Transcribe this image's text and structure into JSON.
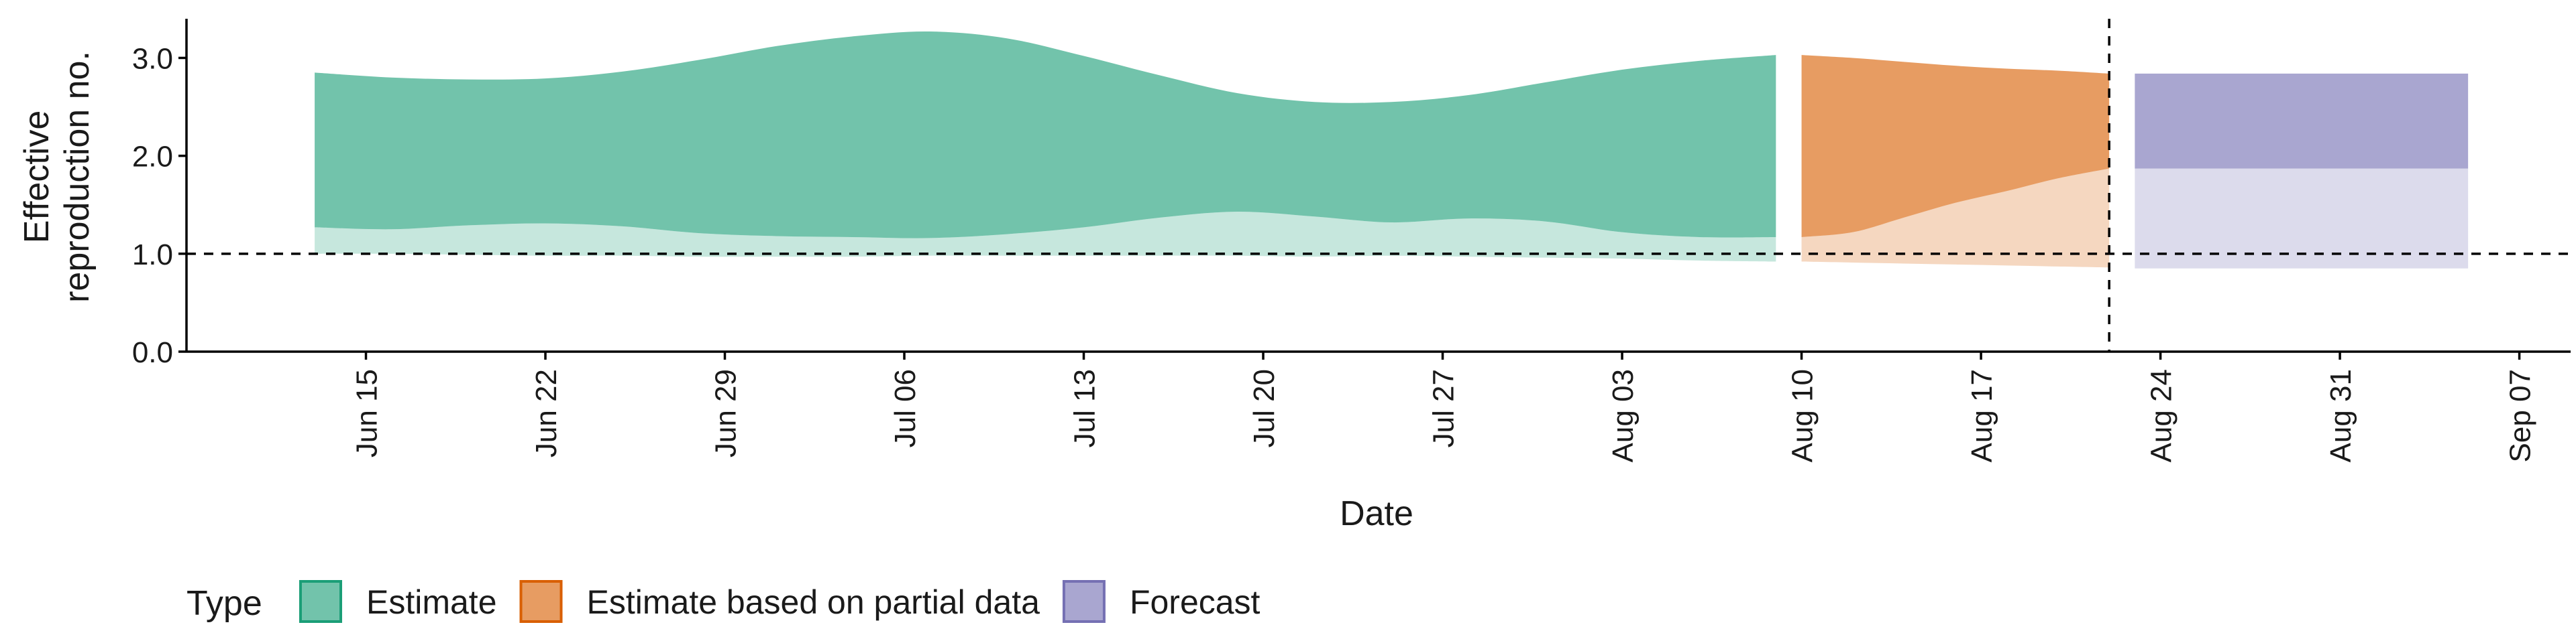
{
  "chart_data": {
    "type": "area",
    "xlabel": "Date",
    "ylabel_lines": [
      "Effective",
      "reproduction no."
    ],
    "ylim": [
      0,
      3.4
    ],
    "yticks": [
      {
        "value": 0,
        "label": "0.0"
      },
      {
        "value": 1,
        "label": "1.0"
      },
      {
        "value": 2,
        "label": "2.0"
      },
      {
        "value": 3,
        "label": "3.0"
      }
    ],
    "xlim": [
      "2020-06-08",
      "2020-09-09"
    ],
    "xticks": [
      {
        "date": "2020-06-15",
        "label": "Jun 15"
      },
      {
        "date": "2020-06-22",
        "label": "Jun 22"
      },
      {
        "date": "2020-06-29",
        "label": "Jun 29"
      },
      {
        "date": "2020-07-06",
        "label": "Jul 06"
      },
      {
        "date": "2020-07-13",
        "label": "Jul 13"
      },
      {
        "date": "2020-07-20",
        "label": "Jul 20"
      },
      {
        "date": "2020-07-27",
        "label": "Jul 27"
      },
      {
        "date": "2020-08-03",
        "label": "Aug 03"
      },
      {
        "date": "2020-08-10",
        "label": "Aug 10"
      },
      {
        "date": "2020-08-17",
        "label": "Aug 17"
      },
      {
        "date": "2020-08-24",
        "label": "Aug 24"
      },
      {
        "date": "2020-08-31",
        "label": "Aug 31"
      },
      {
        "date": "2020-09-07",
        "label": "Sep 07"
      }
    ],
    "reference_line": {
      "y": 1.0,
      "style": "dashed"
    },
    "vertical_line": {
      "date": "2020-08-22",
      "style": "dashed"
    },
    "legend": {
      "title": "Type",
      "position": "bottom",
      "items": [
        {
          "label": "Estimate",
          "fill": "#1b9e77",
          "key": "estimate"
        },
        {
          "label": "Estimate based on partial data",
          "fill": "#d95f02",
          "key": "partial"
        },
        {
          "label": "Forecast",
          "fill": "#7570b3",
          "key": "forecast"
        }
      ]
    },
    "series": [
      {
        "key": "estimate",
        "color": "#1b9e77",
        "x": [
          "2020-06-13",
          "2020-06-16",
          "2020-06-19",
          "2020-06-22",
          "2020-06-25",
          "2020-06-28",
          "2020-07-01",
          "2020-07-04",
          "2020-07-07",
          "2020-07-10",
          "2020-07-13",
          "2020-07-16",
          "2020-07-19",
          "2020-07-22",
          "2020-07-25",
          "2020-07-28",
          "2020-07-31",
          "2020-08-03",
          "2020-08-06",
          "2020-08-09"
        ],
        "upper_90": [
          2.85,
          2.8,
          2.78,
          2.79,
          2.86,
          2.98,
          3.12,
          3.22,
          3.27,
          3.2,
          3.02,
          2.82,
          2.64,
          2.55,
          2.55,
          2.62,
          2.75,
          2.88,
          2.97,
          3.03
        ],
        "upper_50": [
          1.27,
          1.25,
          1.29,
          1.31,
          1.28,
          1.21,
          1.18,
          1.17,
          1.16,
          1.2,
          1.27,
          1.37,
          1.43,
          1.38,
          1.32,
          1.36,
          1.33,
          1.22,
          1.17,
          1.17
        ],
        "lower_90": [
          1.0,
          1.0,
          0.99,
          0.98,
          0.98,
          0.97,
          0.97,
          0.97,
          0.98,
          0.98,
          0.98,
          0.98,
          0.98,
          0.97,
          0.98,
          0.97,
          0.96,
          0.95,
          0.93,
          0.92
        ]
      },
      {
        "key": "partial",
        "color": "#d95f02",
        "x": [
          "2020-08-10",
          "2020-08-12",
          "2020-08-14",
          "2020-08-16",
          "2020-08-18",
          "2020-08-20",
          "2020-08-22"
        ],
        "upper_90": [
          3.03,
          3.0,
          2.96,
          2.92,
          2.89,
          2.87,
          2.84
        ],
        "upper_50": [
          1.17,
          1.22,
          1.37,
          1.52,
          1.64,
          1.77,
          1.87
        ],
        "lower_90": [
          0.92,
          0.91,
          0.9,
          0.89,
          0.88,
          0.87,
          0.86
        ]
      },
      {
        "key": "forecast",
        "color": "#7570b3",
        "x": [
          "2020-08-23",
          "2020-09-05"
        ],
        "upper_90": [
          2.84,
          2.84
        ],
        "upper_50": [
          1.87,
          1.87
        ],
        "lower_90": [
          0.85,
          0.85
        ]
      }
    ]
  }
}
